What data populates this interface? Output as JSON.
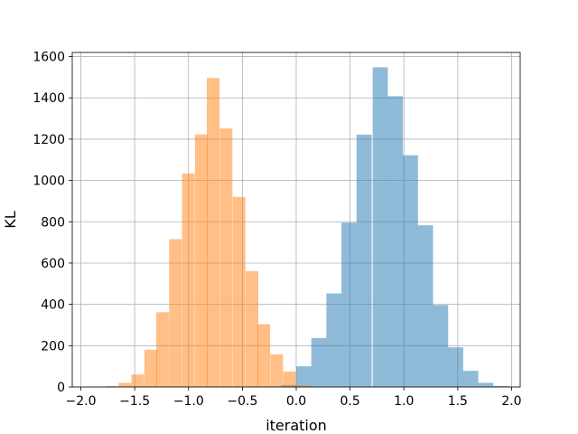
{
  "chart_data": {
    "type": "histogram",
    "title": "",
    "xlabel": "iteration",
    "ylabel": "KL",
    "xlim": [
      -2.08,
      2.08
    ],
    "ylim": [
      0,
      1620
    ],
    "xticks": [
      -2.0,
      -1.5,
      -1.0,
      -0.5,
      0.0,
      0.5,
      1.0,
      1.5,
      2.0
    ],
    "xtick_labels": [
      "−2.0",
      "−1.5",
      "−1.0",
      "−0.5",
      "0.0",
      "0.5",
      "1.0",
      "1.5",
      "2.0"
    ],
    "yticks": [
      0,
      200,
      400,
      600,
      800,
      1000,
      1200,
      1400,
      1600
    ],
    "ytick_labels": [
      "0",
      "200",
      "400",
      "600",
      "800",
      "1000",
      "1200",
      "1400",
      "1600"
    ],
    "grid": true,
    "series": [
      {
        "color": "#1f77b4",
        "alpha": 0.5,
        "bin_width": 0.1408,
        "bin_starts": [
          -0.14,
          -0.0,
          0.14,
          0.28,
          0.42,
          0.56,
          0.71,
          0.85,
          0.99,
          1.13,
          1.27,
          1.41,
          1.55,
          1.69,
          1.83
        ],
        "counts": [
          10,
          100,
          237,
          453,
          796,
          1222,
          1548,
          1408,
          1122,
          783,
          397,
          192,
          78,
          20,
          5
        ]
      },
      {
        "color": "#ff7f0e",
        "alpha": 0.5,
        "bin_width": 0.1176,
        "bin_starts": [
          -1.88,
          -1.77,
          -1.65,
          -1.53,
          -1.41,
          -1.3,
          -1.18,
          -1.06,
          -0.94,
          -0.83,
          -0.71,
          -0.59,
          -0.47,
          -0.36,
          -0.24,
          -0.12,
          -0.0
        ],
        "counts": [
          2,
          5,
          20,
          60,
          180,
          362,
          716,
          1034,
          1223,
          1496,
          1252,
          920,
          561,
          304,
          158,
          75,
          8
        ]
      }
    ]
  }
}
